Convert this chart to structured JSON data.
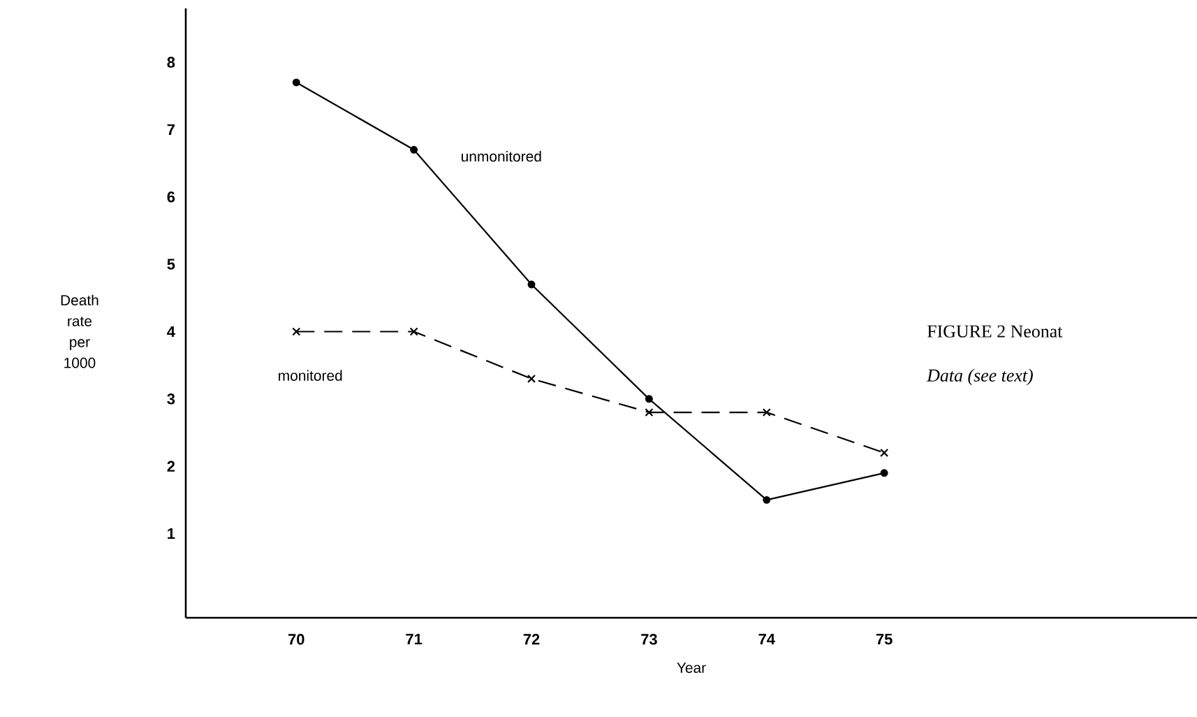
{
  "chart_data": {
    "type": "line",
    "xlabel": "Year",
    "ylabel": "Death rate per 1000",
    "x": [
      70,
      71,
      72,
      73,
      74,
      75
    ],
    "series": [
      {
        "name": "unmonitored",
        "color": "#000000",
        "marker": "circle",
        "line_style": "solid",
        "values": [
          7.7,
          6.7,
          4.7,
          3.0,
          1.5,
          1.9
        ]
      },
      {
        "name": "monitored",
        "color": "#000000",
        "marker": "cross",
        "line_style": "dashed",
        "values": [
          4.0,
          4.0,
          3.3,
          2.8,
          2.8,
          2.2
        ]
      }
    ],
    "xlim": [
      69.06,
      77.66
    ],
    "ylim": [
      -0.25,
      8.8
    ],
    "xticks": [
      70,
      71,
      72,
      73,
      74,
      75
    ],
    "yticks": [
      1,
      2,
      3,
      4,
      5,
      6,
      7,
      8
    ],
    "grid": false,
    "legend": false,
    "annotations": [
      "FIGURE 2    Neonat",
      "Data (see text)"
    ]
  }
}
